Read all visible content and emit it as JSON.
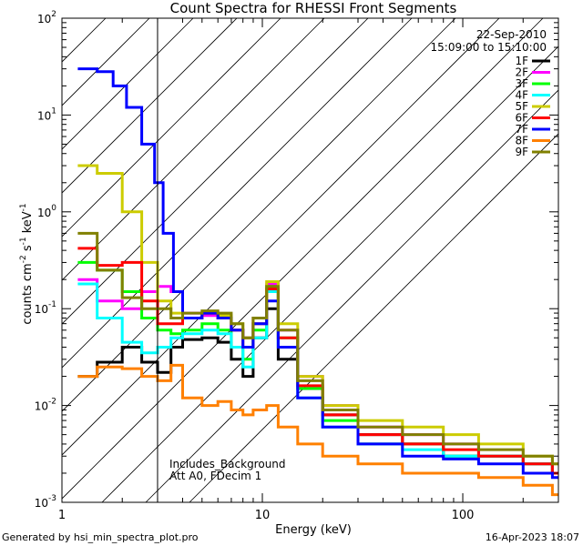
{
  "chart_data": {
    "type": "line",
    "title": "Count Spectra for RHESSI Front Segments",
    "xlabel": "Energy (keV)",
    "ylabel_main": "counts cm",
    "ylabel_exp1": "-2",
    "ylabel_s": " s",
    "ylabel_exp2": "-1",
    "ylabel_kev": " keV",
    "ylabel_exp3": "-1",
    "x_scale": "log",
    "y_scale": "log",
    "xlim": [
      1,
      300
    ],
    "ylim": [
      0.001,
      100
    ],
    "x_ticks": [
      {
        "value": 1,
        "label": "1"
      },
      {
        "value": 10,
        "label": "10"
      },
      {
        "value": 100,
        "label": "100"
      }
    ],
    "y_ticks": [
      {
        "value": 0.001,
        "base": "10",
        "exp": "-3"
      },
      {
        "value": 0.01,
        "base": "10",
        "exp": "-2"
      },
      {
        "value": 0.1,
        "base": "10",
        "exp": "-1"
      },
      {
        "value": 1,
        "base": "10",
        "exp": "0"
      },
      {
        "value": 10,
        "base": "10",
        "exp": "1"
      },
      {
        "value": 100,
        "base": "10",
        "exp": "2"
      }
    ],
    "legend": {
      "position": "top-right",
      "date": "22-Sep-2010",
      "time_range": "15:09:00 to 15:10:00"
    },
    "hatched_region": {
      "x_from": 1,
      "x_to": 3
    },
    "annotations": [
      "Includes_Background",
      "Att A0, FDecim 1"
    ],
    "series": [
      {
        "name": "1F",
        "color": "#000000",
        "points": [
          [
            1.2,
            0.02
          ],
          [
            1.5,
            0.028
          ],
          [
            2.0,
            0.04
          ],
          [
            2.5,
            0.028
          ],
          [
            3.0,
            0.022
          ],
          [
            3.5,
            0.04
          ],
          [
            4.0,
            0.048
          ],
          [
            5.0,
            0.05
          ],
          [
            6.0,
            0.045
          ],
          [
            7.0,
            0.03
          ],
          [
            8.0,
            0.02
          ],
          [
            9.0,
            0.05
          ],
          [
            10.5,
            0.1
          ],
          [
            12,
            0.03
          ],
          [
            15,
            0.015
          ],
          [
            20,
            0.008
          ],
          [
            30,
            0.005
          ],
          [
            50,
            0.004
          ],
          [
            80,
            0.003
          ],
          [
            120,
            0.003
          ],
          [
            200,
            0.0025
          ],
          [
            280,
            0.002
          ]
        ]
      },
      {
        "name": "2F",
        "color": "#ff00ff",
        "points": [
          [
            1.2,
            0.2
          ],
          [
            1.5,
            0.12
          ],
          [
            2.0,
            0.1
          ],
          [
            2.5,
            0.15
          ],
          [
            3.0,
            0.17
          ],
          [
            3.5,
            0.15
          ],
          [
            4.0,
            0.09
          ],
          [
            5.0,
            0.085
          ],
          [
            6.0,
            0.08
          ],
          [
            7.0,
            0.06
          ],
          [
            8.0,
            0.05
          ],
          [
            9.0,
            0.08
          ],
          [
            10.5,
            0.18
          ],
          [
            12,
            0.06
          ],
          [
            15,
            0.02
          ],
          [
            20,
            0.01
          ],
          [
            30,
            0.006
          ],
          [
            50,
            0.005
          ],
          [
            80,
            0.004
          ],
          [
            120,
            0.003
          ],
          [
            200,
            0.0025
          ],
          [
            280,
            0.002
          ]
        ]
      },
      {
        "name": "3F",
        "color": "#00ff00",
        "points": [
          [
            1.2,
            0.3
          ],
          [
            1.5,
            0.25
          ],
          [
            2.0,
            0.15
          ],
          [
            2.5,
            0.08
          ],
          [
            3.0,
            0.06
          ],
          [
            3.5,
            0.055
          ],
          [
            4.0,
            0.06
          ],
          [
            5.0,
            0.07
          ],
          [
            6.0,
            0.06
          ],
          [
            7.0,
            0.04
          ],
          [
            8.0,
            0.03
          ],
          [
            9.0,
            0.06
          ],
          [
            10.5,
            0.17
          ],
          [
            12,
            0.05
          ],
          [
            15,
            0.015
          ],
          [
            20,
            0.007
          ],
          [
            30,
            0.004
          ],
          [
            50,
            0.004
          ],
          [
            80,
            0.003
          ],
          [
            120,
            0.003
          ],
          [
            200,
            0.0025
          ],
          [
            280,
            0.002
          ]
        ]
      },
      {
        "name": "4F",
        "color": "#00ffff",
        "points": [
          [
            1.2,
            0.18
          ],
          [
            1.5,
            0.08
          ],
          [
            2.0,
            0.045
          ],
          [
            2.5,
            0.035
          ],
          [
            3.0,
            0.04
          ],
          [
            3.5,
            0.05
          ],
          [
            4.0,
            0.055
          ],
          [
            5.0,
            0.06
          ],
          [
            6.0,
            0.055
          ],
          [
            7.0,
            0.04
          ],
          [
            8.0,
            0.025
          ],
          [
            9.0,
            0.05
          ],
          [
            10.5,
            0.15
          ],
          [
            12,
            0.04
          ],
          [
            15,
            0.012
          ],
          [
            20,
            0.006
          ],
          [
            30,
            0.004
          ],
          [
            50,
            0.0035
          ],
          [
            80,
            0.003
          ],
          [
            120,
            0.003
          ],
          [
            200,
            0.0025
          ],
          [
            280,
            0.002
          ]
        ]
      },
      {
        "name": "5F",
        "color": "#cccc00",
        "points": [
          [
            1.2,
            3.0
          ],
          [
            1.5,
            2.5
          ],
          [
            2.0,
            1.0
          ],
          [
            2.5,
            0.3
          ],
          [
            3.0,
            0.12
          ],
          [
            3.5,
            0.09
          ],
          [
            4.0,
            0.08
          ],
          [
            5.0,
            0.09
          ],
          [
            6.0,
            0.085
          ],
          [
            7.0,
            0.07
          ],
          [
            8.0,
            0.05
          ],
          [
            9.0,
            0.08
          ],
          [
            10.5,
            0.19
          ],
          [
            12,
            0.07
          ],
          [
            15,
            0.02
          ],
          [
            20,
            0.01
          ],
          [
            30,
            0.007
          ],
          [
            50,
            0.006
          ],
          [
            80,
            0.005
          ],
          [
            120,
            0.004
          ],
          [
            200,
            0.003
          ],
          [
            280,
            0.0025
          ]
        ]
      },
      {
        "name": "6F",
        "color": "#ff0000",
        "points": [
          [
            1.2,
            0.42
          ],
          [
            1.5,
            0.28
          ],
          [
            2.0,
            0.3
          ],
          [
            2.5,
            0.12
          ],
          [
            3.0,
            0.07
          ],
          [
            3.5,
            0.07
          ],
          [
            4.0,
            0.08
          ],
          [
            5.0,
            0.09
          ],
          [
            6.0,
            0.08
          ],
          [
            7.0,
            0.06
          ],
          [
            8.0,
            0.04
          ],
          [
            9.0,
            0.07
          ],
          [
            10.5,
            0.16
          ],
          [
            12,
            0.05
          ],
          [
            15,
            0.016
          ],
          [
            20,
            0.008
          ],
          [
            30,
            0.005
          ],
          [
            50,
            0.004
          ],
          [
            80,
            0.0035
          ],
          [
            120,
            0.003
          ],
          [
            200,
            0.0025
          ],
          [
            280,
            0.002
          ]
        ]
      },
      {
        "name": "7F",
        "color": "#0000ff",
        "points": [
          [
            1.2,
            30.0
          ],
          [
            1.5,
            28.0
          ],
          [
            1.8,
            20.0
          ],
          [
            2.1,
            12.0
          ],
          [
            2.5,
            5.0
          ],
          [
            2.9,
            2.0
          ],
          [
            3.2,
            0.6
          ],
          [
            3.6,
            0.15
          ],
          [
            4.0,
            0.08
          ],
          [
            5.0,
            0.09
          ],
          [
            6.0,
            0.08
          ],
          [
            7.0,
            0.06
          ],
          [
            8.0,
            0.04
          ],
          [
            9.0,
            0.07
          ],
          [
            10.5,
            0.12
          ],
          [
            12,
            0.04
          ],
          [
            15,
            0.012
          ],
          [
            20,
            0.006
          ],
          [
            30,
            0.004
          ],
          [
            50,
            0.003
          ],
          [
            80,
            0.0028
          ],
          [
            120,
            0.0025
          ],
          [
            200,
            0.002
          ],
          [
            280,
            0.0018
          ]
        ]
      },
      {
        "name": "8F",
        "color": "#ff8000",
        "points": [
          [
            1.2,
            0.02
          ],
          [
            1.5,
            0.025
          ],
          [
            2.0,
            0.024
          ],
          [
            2.5,
            0.02
          ],
          [
            3.0,
            0.018
          ],
          [
            3.5,
            0.026
          ],
          [
            4.0,
            0.012
          ],
          [
            5.0,
            0.01
          ],
          [
            6.0,
            0.011
          ],
          [
            7.0,
            0.009
          ],
          [
            8.0,
            0.008
          ],
          [
            9.0,
            0.009
          ],
          [
            10.5,
            0.01
          ],
          [
            12,
            0.006
          ],
          [
            15,
            0.004
          ],
          [
            20,
            0.003
          ],
          [
            30,
            0.0025
          ],
          [
            50,
            0.002
          ],
          [
            80,
            0.002
          ],
          [
            120,
            0.0018
          ],
          [
            200,
            0.0015
          ],
          [
            280,
            0.0012
          ]
        ]
      },
      {
        "name": "9F",
        "color": "#808000",
        "points": [
          [
            1.2,
            0.6
          ],
          [
            1.5,
            0.25
          ],
          [
            2.0,
            0.13
          ],
          [
            2.5,
            0.1
          ],
          [
            3.0,
            0.1
          ],
          [
            3.5,
            0.08
          ],
          [
            4.0,
            0.09
          ],
          [
            5.0,
            0.095
          ],
          [
            6.0,
            0.09
          ],
          [
            7.0,
            0.07
          ],
          [
            8.0,
            0.05
          ],
          [
            9.0,
            0.08
          ],
          [
            10.5,
            0.17
          ],
          [
            12,
            0.06
          ],
          [
            15,
            0.018
          ],
          [
            20,
            0.009
          ],
          [
            30,
            0.006
          ],
          [
            50,
            0.005
          ],
          [
            80,
            0.004
          ],
          [
            120,
            0.0035
          ],
          [
            200,
            0.003
          ],
          [
            280,
            0.0025
          ]
        ]
      }
    ]
  },
  "footer": {
    "left": "Generated by hsi_min_spectra_plot.pro",
    "right": "16-Apr-2023 18:07"
  }
}
